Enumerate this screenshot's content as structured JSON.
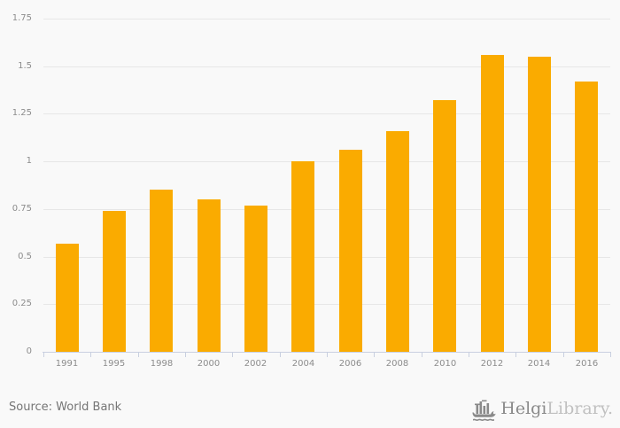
{
  "chart_data": {
    "type": "bar",
    "categories": [
      "1991",
      "1995",
      "1998",
      "2000",
      "2002",
      "2004",
      "2006",
      "2008",
      "2010",
      "2012",
      "2014",
      "2016"
    ],
    "values": [
      0.57,
      0.74,
      0.85,
      0.8,
      0.77,
      1.0,
      1.06,
      1.16,
      1.32,
      1.56,
      1.55,
      1.42
    ],
    "title": "",
    "xlabel": "",
    "ylabel": "",
    "ylim": [
      0,
      1.75
    ],
    "yticks": [
      0,
      0.25,
      0.5,
      0.75,
      1,
      1.25,
      1.5,
      1.75
    ],
    "ytick_labels": [
      "0",
      "0.25",
      "0.5",
      "0.75",
      "1",
      "1.25",
      "1.5",
      "1.75"
    ],
    "grid": true,
    "legend": "none",
    "bar_color": "#FAAB00"
  },
  "source": {
    "label": "Source: World Bank"
  },
  "logo": {
    "name": "Helgi",
    "suffix": "Library."
  },
  "colors": {
    "background": "#f9f9f9",
    "gridline": "#e7e7e7",
    "axis": "#c9d0e0",
    "bar": "#FAAB00",
    "tick_text": "#8c8c8c",
    "source_text": "#757575",
    "logo_primary": "#8a8a8a",
    "logo_secondary": "#c0c0c0"
  }
}
